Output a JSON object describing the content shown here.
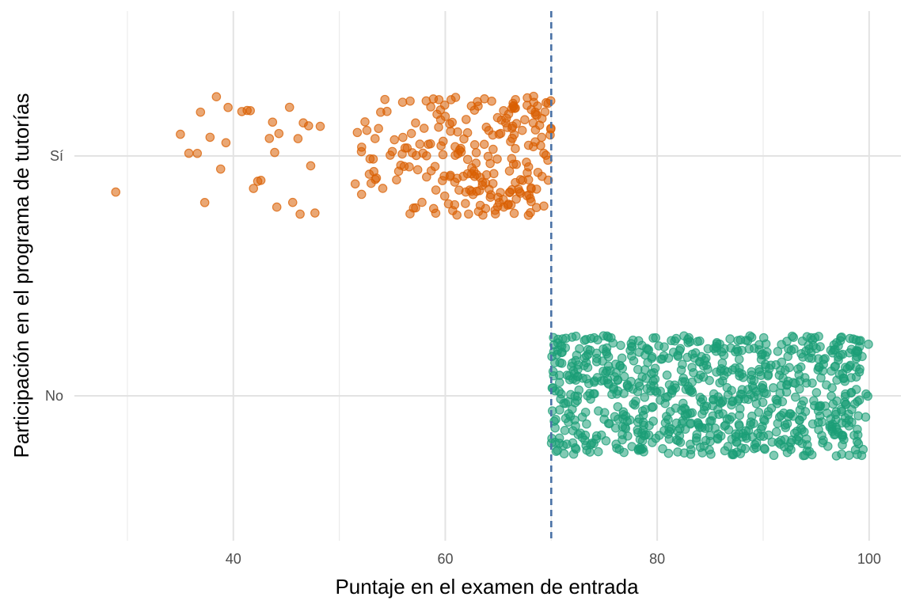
{
  "chart_data": {
    "type": "scatter",
    "subtype": "jitter",
    "title": "",
    "xlabel": "Puntaje en el examen de entrada",
    "ylabel": "Participación en el programa de tutorías",
    "xlim": [
      25,
      103
    ],
    "x_ticks": [
      40,
      60,
      80,
      100
    ],
    "x_minor_ticks": [
      30,
      50,
      70,
      90
    ],
    "categories": [
      "Sí",
      "No"
    ],
    "grid": true,
    "legend": "none",
    "cutoff": {
      "x": 70,
      "style": "dashed",
      "color": "#4a72a6"
    },
    "series": [
      {
        "category": "Sí",
        "color": "#d95f02",
        "x_range": [
          29,
          70
        ],
        "values": [
          28.9,
          35.0,
          35.8,
          36.6,
          36.9,
          37.3,
          37.8,
          38.4,
          38.8,
          39.3,
          39.5,
          40.8,
          41.3,
          41.6,
          41.9,
          42.3,
          42.6,
          43.4,
          43.7,
          43.9,
          44.1,
          44.3,
          45.3,
          45.6,
          46.1,
          46.3,
          46.6,
          47.1,
          47.3,
          47.7,
          48.2,
          51.5,
          51.7,
          52.1,
          52.6,
          52.9,
          53.0,
          53.2,
          53.4,
          53.5,
          53.7,
          53.9,
          54.1,
          54.3,
          54.5,
          54.8,
          55.0,
          55.2,
          55.4,
          55.6,
          55.8,
          56.0,
          56.2,
          56.4,
          56.6,
          56.8,
          57.0,
          57.2,
          57.4,
          57.6,
          57.8,
          58.0,
          58.2,
          58.4,
          58.6,
          58.9,
          59.1,
          59.4,
          59.6,
          59.8,
          60.0,
          60.3,
          60.5,
          60.7,
          60.9,
          61.1,
          61.3,
          61.5,
          61.7,
          61.9,
          62.1,
          62.3,
          62.5,
          62.7,
          62.9,
          63.1,
          63.3,
          63.5,
          63.7,
          63.9,
          64.1,
          64.3,
          64.5,
          64.7,
          64.9,
          65.1,
          65.3,
          65.5,
          65.7,
          65.9,
          66.1,
          66.3,
          66.5,
          66.7,
          66.9,
          67.1,
          67.3,
          67.5,
          67.7,
          67.9,
          68.1,
          68.3,
          68.5,
          68.7,
          68.9,
          69.1,
          69.3,
          69.5,
          69.7,
          69.9
        ],
        "count": 270,
        "jitter_spread": 0.25
      },
      {
        "category": "No",
        "color": "#1b9e77",
        "x_range": [
          70,
          100
        ],
        "count": 800,
        "jitter_spread": 0.25
      }
    ]
  }
}
